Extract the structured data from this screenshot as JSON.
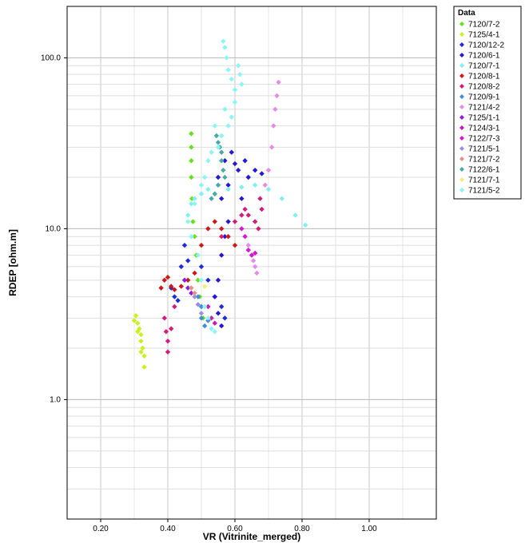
{
  "chart_data": {
    "type": "scatter",
    "title": "",
    "xlabel": "VR (Vitrinite_merged)",
    "ylabel": "RDEP [ohm.m]",
    "x_scale": "linear",
    "y_scale": "log",
    "xlim": [
      0.1,
      1.2
    ],
    "ylim": [
      0.2,
      200
    ],
    "x_ticks": [
      0.2,
      0.4,
      0.6,
      0.8,
      1.0
    ],
    "x_tick_labels": [
      "0.20",
      "0.40",
      "0.60",
      "0.80",
      "1.00"
    ],
    "y_ticks": [
      1,
      10,
      100
    ],
    "y_tick_labels": [
      "1.0",
      "10.0",
      "100.0"
    ],
    "grid": true,
    "legend_title": "Data",
    "legend_position": "right",
    "series": [
      {
        "name": "7120/7-2",
        "color": "#66e01a",
        "points": [
          [
            0.47,
            36
          ],
          [
            0.47,
            30
          ],
          [
            0.47,
            25
          ],
          [
            0.47,
            20
          ],
          [
            0.472,
            15
          ],
          [
            0.475,
            11
          ],
          [
            0.48,
            9
          ],
          [
            0.485,
            7
          ],
          [
            0.49,
            5
          ],
          [
            0.495,
            4
          ],
          [
            0.5,
            3.5
          ],
          [
            0.505,
            3
          ]
        ]
      },
      {
        "name": "7125/4-1",
        "color": "#c8f21e",
        "points": [
          [
            0.305,
            3.1
          ],
          [
            0.31,
            2.8
          ],
          [
            0.315,
            2.6
          ],
          [
            0.32,
            2.4
          ],
          [
            0.32,
            2.2
          ],
          [
            0.325,
            2.0
          ],
          [
            0.32,
            1.9
          ],
          [
            0.33,
            1.8
          ],
          [
            0.33,
            1.55
          ],
          [
            0.31,
            2.5
          ],
          [
            0.3,
            2.9
          ]
        ]
      },
      {
        "name": "7120/12-2",
        "color": "#1e2bd8",
        "points": [
          [
            0.41,
            4.5
          ],
          [
            0.42,
            4.0
          ],
          [
            0.43,
            3.8
          ],
          [
            0.44,
            6
          ],
          [
            0.45,
            8
          ],
          [
            0.46,
            6.5
          ],
          [
            0.5,
            6
          ],
          [
            0.52,
            5
          ],
          [
            0.54,
            4
          ],
          [
            0.56,
            3.5
          ],
          [
            0.57,
            3
          ]
        ]
      },
      {
        "name": "7120/6-1",
        "color": "#2418d6",
        "points": [
          [
            0.55,
            20
          ],
          [
            0.56,
            15
          ],
          [
            0.57,
            25
          ],
          [
            0.58,
            18
          ],
          [
            0.59,
            28
          ],
          [
            0.6,
            24
          ],
          [
            0.61,
            22
          ],
          [
            0.62,
            15
          ],
          [
            0.63,
            25
          ],
          [
            0.64,
            20
          ],
          [
            0.66,
            22
          ],
          [
            0.68,
            21
          ],
          [
            0.58,
            11
          ],
          [
            0.57,
            9
          ],
          [
            0.56,
            7
          ],
          [
            0.55,
            5
          ],
          [
            0.54,
            4
          ],
          [
            0.55,
            3.2
          ],
          [
            0.56,
            2.7
          ]
        ]
      },
      {
        "name": "7120/7-1",
        "color": "#7ef0f0",
        "points": [
          [
            0.46,
            12
          ],
          [
            0.47,
            14
          ],
          [
            0.48,
            15
          ],
          [
            0.5,
            16
          ],
          [
            0.52,
            17
          ],
          [
            0.55,
            18
          ],
          [
            0.58,
            17
          ],
          [
            0.62,
            17.5
          ],
          [
            0.66,
            18
          ],
          [
            0.7,
            17
          ],
          [
            0.74,
            15
          ],
          [
            0.78,
            12
          ],
          [
            0.81,
            10.5
          ]
        ]
      },
      {
        "name": "7120/8-1",
        "color": "#d01818",
        "points": [
          [
            0.38,
            4.5
          ],
          [
            0.39,
            5
          ],
          [
            0.4,
            5.2
          ],
          [
            0.41,
            4.6
          ],
          [
            0.42,
            4.4
          ],
          [
            0.44,
            4.6
          ],
          [
            0.46,
            5
          ],
          [
            0.48,
            5.5
          ],
          [
            0.5,
            8
          ],
          [
            0.52,
            10
          ],
          [
            0.54,
            11
          ],
          [
            0.56,
            10
          ],
          [
            0.58,
            9
          ],
          [
            0.6,
            8
          ]
        ]
      },
      {
        "name": "7120/8-2",
        "color": "#d61a7c",
        "points": [
          [
            0.39,
            3
          ],
          [
            0.395,
            2.5
          ],
          [
            0.4,
            2.2
          ],
          [
            0.4,
            1.9
          ],
          [
            0.41,
            2.6
          ],
          [
            0.42,
            3.5
          ],
          [
            0.56,
            9
          ],
          [
            0.6,
            11
          ],
          [
            0.62,
            12
          ],
          [
            0.63,
            13
          ],
          [
            0.64,
            12
          ],
          [
            0.66,
            11
          ],
          [
            0.67,
            10
          ],
          [
            0.675,
            15
          ],
          [
            0.68,
            13
          ]
        ]
      },
      {
        "name": "7120/9-1",
        "color": "#3f8fd8",
        "points": [
          [
            0.49,
            4
          ],
          [
            0.5,
            3.5
          ],
          [
            0.5,
            3
          ],
          [
            0.51,
            2.7
          ],
          [
            0.52,
            2.9
          ]
        ]
      },
      {
        "name": "7121/4-2",
        "color": "#e28ce8",
        "points": [
          [
            0.69,
            18
          ],
          [
            0.7,
            22
          ],
          [
            0.71,
            30
          ],
          [
            0.715,
            40
          ],
          [
            0.72,
            50
          ],
          [
            0.725,
            60
          ],
          [
            0.73,
            72
          ],
          [
            0.64,
            8
          ],
          [
            0.65,
            7
          ],
          [
            0.655,
            6.5
          ],
          [
            0.66,
            6
          ],
          [
            0.665,
            5.5
          ]
        ]
      },
      {
        "name": "7125/1-1",
        "color": "#8c1ae0",
        "points": [
          [
            0.45,
            5
          ],
          [
            0.46,
            4.5
          ],
          [
            0.47,
            4.2
          ]
        ]
      },
      {
        "name": "7124/3-1",
        "color": "#c81ab0",
        "points": [
          [
            0.52,
            3.5
          ],
          [
            0.53,
            3
          ],
          [
            0.54,
            2.8
          ]
        ]
      },
      {
        "name": "7122/7-3",
        "color": "#d818d0",
        "points": [
          [
            0.62,
            10
          ],
          [
            0.63,
            9
          ],
          [
            0.64,
            7.5
          ],
          [
            0.65,
            7
          ],
          [
            0.66,
            7.2
          ]
        ]
      },
      {
        "name": "7121/5-1",
        "color": "#9a8ee0",
        "points": [
          [
            0.48,
            4
          ],
          [
            0.49,
            3.6
          ],
          [
            0.5,
            3.2
          ]
        ]
      },
      {
        "name": "7121/7-2",
        "color": "#e89080",
        "points": [
          [
            0.47,
            4.5
          ],
          [
            0.48,
            4.2
          ]
        ]
      },
      {
        "name": "7122/6-1",
        "color": "#4aa8a8",
        "points": [
          [
            0.545,
            35
          ],
          [
            0.55,
            32
          ],
          [
            0.555,
            30
          ],
          [
            0.56,
            28
          ],
          [
            0.56,
            25
          ],
          [
            0.565,
            22
          ],
          [
            0.57,
            20
          ],
          [
            0.55,
            18
          ],
          [
            0.54,
            16
          ],
          [
            0.53,
            15
          ]
        ]
      },
      {
        "name": "7121/7-1",
        "color": "#f0f078",
        "points": [
          [
            0.5,
            5
          ],
          [
            0.51,
            4.6
          ]
        ]
      },
      {
        "name": "7121/5-2",
        "color": "#8cf4f4",
        "points": [
          [
            0.565,
            125
          ],
          [
            0.57,
            115
          ],
          [
            0.575,
            100
          ],
          [
            0.58,
            85
          ],
          [
            0.59,
            75
          ],
          [
            0.6,
            65
          ],
          [
            0.61,
            90
          ],
          [
            0.615,
            80
          ],
          [
            0.62,
            70
          ],
          [
            0.6,
            55
          ],
          [
            0.59,
            45
          ],
          [
            0.58,
            40
          ],
          [
            0.57,
            50
          ],
          [
            0.56,
            35
          ],
          [
            0.55,
            30
          ],
          [
            0.54,
            40
          ],
          [
            0.53,
            28
          ],
          [
            0.52,
            25
          ],
          [
            0.51,
            20
          ],
          [
            0.5,
            18
          ],
          [
            0.48,
            14
          ],
          [
            0.46,
            11
          ],
          [
            0.47,
            9
          ],
          [
            0.49,
            7
          ],
          [
            0.5,
            5
          ],
          [
            0.51,
            3.5
          ],
          [
            0.52,
            3
          ],
          [
            0.53,
            2.6
          ],
          [
            0.54,
            2.5
          ]
        ]
      }
    ]
  }
}
